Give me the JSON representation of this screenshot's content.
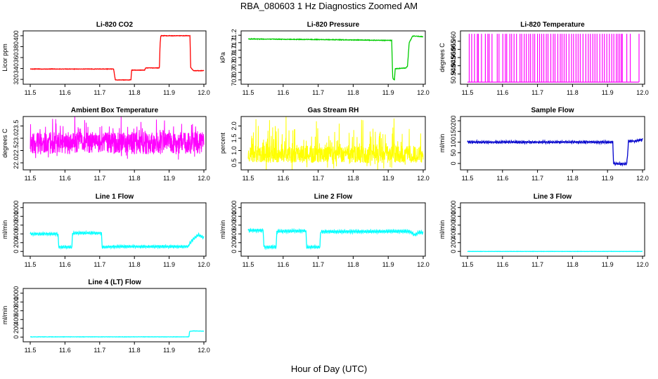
{
  "figure": {
    "title": "RBA_080603  1 Hz Diagnostics Zoomed AM",
    "xlabel": "Hour of Day (UTC)"
  },
  "chart_data": [
    {
      "type": "line",
      "title": "Li-820 CO2",
      "ylabel": "Licor ppm",
      "color": "#ff0000",
      "xlim": [
        11.5,
        12.0
      ],
      "xticks": [
        "11.5",
        "11.6",
        "11.7",
        "11.8",
        "11.9",
        "12.0"
      ],
      "ylim": [
        315,
        405
      ],
      "yticks": [
        "320",
        "340",
        "360",
        "380",
        "400"
      ],
      "noise": 0.4,
      "series": [
        [
          11.5,
          339
        ],
        [
          11.74,
          339
        ],
        [
          11.745,
          319
        ],
        [
          11.79,
          319
        ],
        [
          11.792,
          337
        ],
        [
          11.83,
          337
        ],
        [
          11.832,
          341
        ],
        [
          11.872,
          341
        ],
        [
          11.874,
          385
        ],
        [
          11.876,
          400
        ],
        [
          11.96,
          400
        ],
        [
          11.962,
          342
        ],
        [
          11.97,
          336
        ],
        [
          12.0,
          336
        ]
      ]
    },
    {
      "type": "line",
      "title": "Li-820 Pressure",
      "ylabel": "kPa",
      "color": "#00cc00",
      "xlim": [
        11.5,
        12.0
      ],
      "xticks": [
        "11.5",
        "11.6",
        "11.7",
        "11.8",
        "11.9",
        "12.0"
      ],
      "ylim": [
        70.57,
        71.23
      ],
      "yticks": [
        "70.6",
        "70.7",
        "70.8",
        "70.9",
        "71.0",
        "71.1",
        "71.2"
      ],
      "noise": 0.004,
      "series": [
        [
          11.5,
          71.15
        ],
        [
          11.75,
          71.14
        ],
        [
          11.91,
          71.13
        ],
        [
          11.913,
          70.62
        ],
        [
          11.918,
          70.6
        ],
        [
          11.92,
          70.75
        ],
        [
          11.95,
          70.76
        ],
        [
          11.955,
          70.78
        ],
        [
          11.96,
          71.1
        ],
        [
          11.97,
          71.19
        ],
        [
          12.0,
          71.18
        ]
      ]
    },
    {
      "type": "spikes",
      "title": "Li-820 Temperature",
      "ylabel": "degrees C",
      "color": "#ff00ff",
      "xlim": [
        11.5,
        12.0
      ],
      "xticks": [
        "11.5",
        "11.6",
        "11.7",
        "11.8",
        "11.9",
        "12.0"
      ],
      "ylim": [
        50.935,
        50.965
      ],
      "yticks": [
        "50.940",
        "50.945",
        "50.950",
        "50.955",
        "50.960"
      ],
      "base": 50.935,
      "peak": 50.9645,
      "spike_range": [
        11.5,
        11.99
      ],
      "spike_x": [
        11.505,
        11.512,
        11.52,
        11.528,
        11.531,
        11.54,
        11.551,
        11.558,
        11.562,
        11.57,
        11.585,
        11.59,
        11.601,
        11.608,
        11.612,
        11.621,
        11.626,
        11.633,
        11.64,
        11.65,
        11.655,
        11.662,
        11.668,
        11.675,
        11.68,
        11.687,
        11.692,
        11.7,
        11.706,
        11.712,
        11.718,
        11.725,
        11.73,
        11.738,
        11.745,
        11.75,
        11.758,
        11.765,
        11.77,
        11.776,
        11.782,
        11.79,
        11.797,
        11.803,
        11.81,
        11.816,
        11.822,
        11.83,
        11.838,
        11.845,
        11.851,
        11.858,
        11.864,
        11.87,
        11.878,
        11.885,
        11.891,
        11.898,
        11.905,
        11.912,
        11.918,
        11.925,
        11.93,
        11.935,
        11.94,
        11.942,
        11.955,
        11.965,
        11.99
      ]
    },
    {
      "type": "noise",
      "title": "Ambient Box Temperature",
      "ylabel": "degrees C",
      "color": "#ff00ff",
      "xlim": [
        11.5,
        12.0
      ],
      "xticks": [
        "11.5",
        "11.6",
        "11.7",
        "11.8",
        "11.9",
        "12.0"
      ],
      "ylim": [
        21.8,
        23.8
      ],
      "yticks": [
        "22.0",
        "22.5",
        "23.0",
        "23.5"
      ],
      "center": 22.8,
      "amp": 0.45,
      "spikes": 0.55,
      "n": 900,
      "seed": 11
    },
    {
      "type": "noise",
      "title": "Gas Stream RH",
      "ylabel": "percent",
      "color": "#ffff00",
      "xlim": [
        11.5,
        12.0
      ],
      "xticks": [
        "11.5",
        "11.6",
        "11.7",
        "11.8",
        "11.9",
        "12.0"
      ],
      "ylim": [
        0.3,
        2.3
      ],
      "yticks": [
        "0.5",
        "1.0",
        "1.5",
        "2.0"
      ],
      "center": 0.85,
      "amp": 0.35,
      "spikes": 0.9,
      "n": 900,
      "seed": 23
    },
    {
      "type": "line",
      "title": "Sample Flow",
      "ylabel": "ml/min",
      "color": "#0000cc",
      "xlim": [
        11.5,
        12.0
      ],
      "xticks": [
        "11.5",
        "11.6",
        "11.7",
        "11.8",
        "11.9",
        "12.0"
      ],
      "ylim": [
        -20,
        210
      ],
      "yticks": [
        "0",
        "50",
        "100",
        "150",
        "200"
      ],
      "noise": 2.5,
      "wave": 4,
      "series": [
        [
          11.5,
          100
        ],
        [
          11.915,
          100
        ],
        [
          11.917,
          5
        ],
        [
          11.92,
          -2
        ],
        [
          11.955,
          -2
        ],
        [
          11.957,
          40
        ],
        [
          11.96,
          105
        ],
        [
          11.98,
          105
        ],
        [
          12.0,
          112
        ]
      ]
    },
    {
      "type": "line",
      "title": "Line 1 Flow",
      "ylabel": "ml/min",
      "color": "#00ffff",
      "xlim": [
        11.5,
        12.0
      ],
      "xticks": [
        "11.5",
        "11.6",
        "11.7",
        "11.8",
        "11.9",
        "12.0"
      ],
      "ylim": [
        -60,
        1060
      ],
      "yticks": [
        "0",
        "200",
        "400",
        "600",
        "800",
        "1000"
      ],
      "noise": 8,
      "wave": 25,
      "series": [
        [
          11.5,
          400
        ],
        [
          11.58,
          400
        ],
        [
          11.582,
          100
        ],
        [
          11.62,
          100
        ],
        [
          11.622,
          420
        ],
        [
          11.705,
          420
        ],
        [
          11.707,
          100
        ],
        [
          11.75,
          110
        ],
        [
          11.955,
          110
        ],
        [
          11.957,
          160
        ],
        [
          11.97,
          290
        ],
        [
          11.985,
          380
        ],
        [
          12.0,
          310
        ]
      ]
    },
    {
      "type": "line",
      "title": "Line 2 Flow",
      "ylabel": "ml/min",
      "color": "#00ffff",
      "xlim": [
        11.5,
        12.0
      ],
      "xticks": [
        "11.5",
        "11.6",
        "11.7",
        "11.8",
        "11.9",
        "12.0"
      ],
      "ylim": [
        -60,
        1060
      ],
      "yticks": [
        "0",
        "200",
        "400",
        "600",
        "800",
        "1000"
      ],
      "noise": 8,
      "wave": 30,
      "series": [
        [
          11.5,
          480
        ],
        [
          11.543,
          480
        ],
        [
          11.545,
          100
        ],
        [
          11.58,
          100
        ],
        [
          11.582,
          460
        ],
        [
          11.665,
          470
        ],
        [
          11.667,
          100
        ],
        [
          11.705,
          100
        ],
        [
          11.707,
          450
        ],
        [
          11.96,
          460
        ],
        [
          11.975,
          380
        ],
        [
          11.99,
          440
        ],
        [
          12.0,
          420
        ]
      ]
    },
    {
      "type": "line",
      "title": "Line 3 Flow",
      "ylabel": "ml/min",
      "color": "#00ffff",
      "xlim": [
        11.5,
        12.0
      ],
      "xticks": [
        "11.5",
        "11.6",
        "11.7",
        "11.8",
        "11.9",
        "12.0"
      ],
      "ylim": [
        -60,
        1060
      ],
      "yticks": [
        "0",
        "200",
        "400",
        "600",
        "800",
        "1000"
      ],
      "noise": 3,
      "wave": 0,
      "series": [
        [
          11.5,
          0
        ],
        [
          12.0,
          0
        ]
      ]
    },
    {
      "type": "line",
      "title": "Line 4 (LT) Flow",
      "ylabel": "ml/min",
      "color": "#00ffff",
      "xlim": [
        11.5,
        12.0
      ],
      "xticks": [
        "11.5",
        "11.6",
        "11.7",
        "11.8",
        "11.9",
        "12.0"
      ],
      "ylim": [
        -60,
        1060
      ],
      "yticks": [
        "0",
        "200",
        "400",
        "600",
        "800",
        "1000"
      ],
      "noise": 3,
      "wave": 0,
      "series": [
        [
          11.5,
          5
        ],
        [
          11.957,
          5
        ],
        [
          11.959,
          130
        ],
        [
          11.97,
          140
        ],
        [
          12.0,
          135
        ]
      ]
    }
  ]
}
